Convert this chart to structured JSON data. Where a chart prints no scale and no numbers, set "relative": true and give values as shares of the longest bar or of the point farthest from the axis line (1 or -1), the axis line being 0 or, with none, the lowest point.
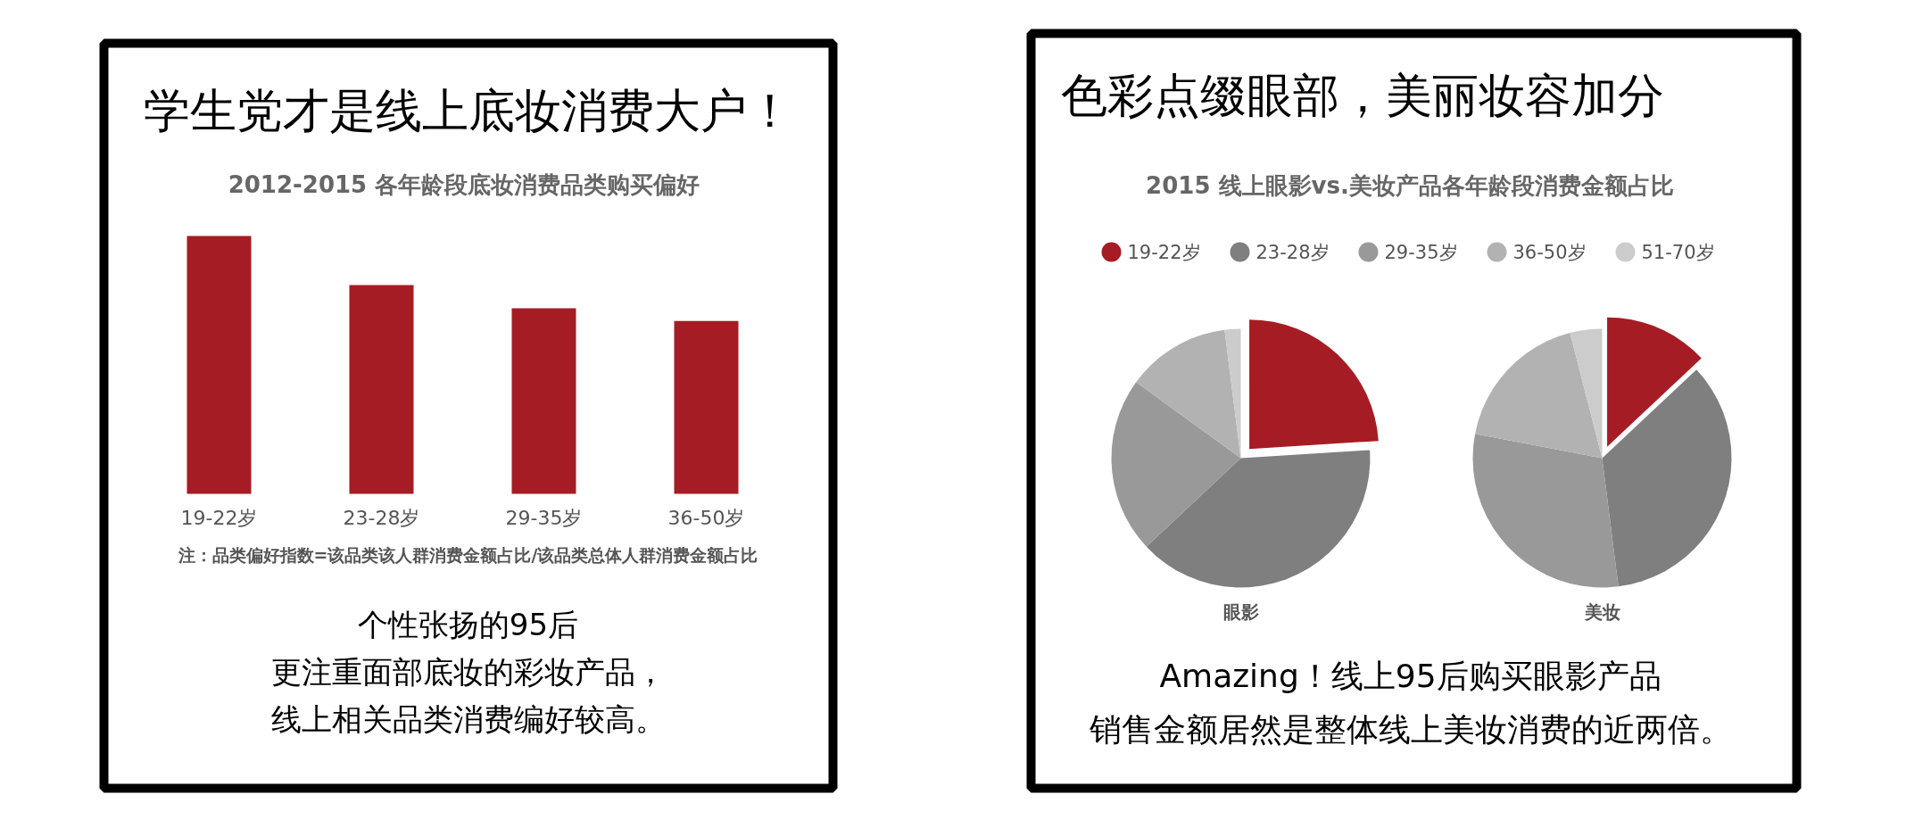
{
  "chart_data": [
    {
      "type": "bar",
      "title": "学生党才是线上底妆消费大户！",
      "subtitle": "2012-2015  各年龄段底妆消费品类购买偏好",
      "categories": [
        "19-22岁",
        "23-28岁",
        "29-35岁",
        "36-50岁"
      ],
      "values": [
        1,
        0.81,
        0.72,
        0.67
      ],
      "color": "#a61c24",
      "relative": true,
      "annotations": [
        "注：品类偏好指数=该品类该人群消费金额占比/该品类总体人群消费金额占比",
        "个性张扬的95后",
        "更注重面部底妆的彩妆产品，",
        "线上相关品类消费编好较高。"
      ]
    },
    {
      "type": "pie",
      "title": "色彩点缀眼部，美丽妆容加分",
      "subtitle": "2015  线上眼影vs.美妆产品各年龄段消费金额占比",
      "categories": [
        "19-22岁",
        "23-28岁",
        "29-35岁",
        "36-50岁",
        "51-70岁"
      ],
      "colors": [
        "#a61c24",
        "#7f7f7f",
        "#999999",
        "#b2b2b2",
        "#cccccc"
      ],
      "series": [
        {
          "name": "眼影",
          "values": [
            24,
            39,
            22,
            13,
            2
          ]
        },
        {
          "name": "美妆",
          "values": [
            13,
            35,
            30,
            18,
            4
          ]
        }
      ],
      "legend": "top",
      "annotations": [
        "Amazing！线上95后购买眼影产品",
        "销售金额居然是整体线上美妆消费的近两倍。"
      ]
    }
  ]
}
